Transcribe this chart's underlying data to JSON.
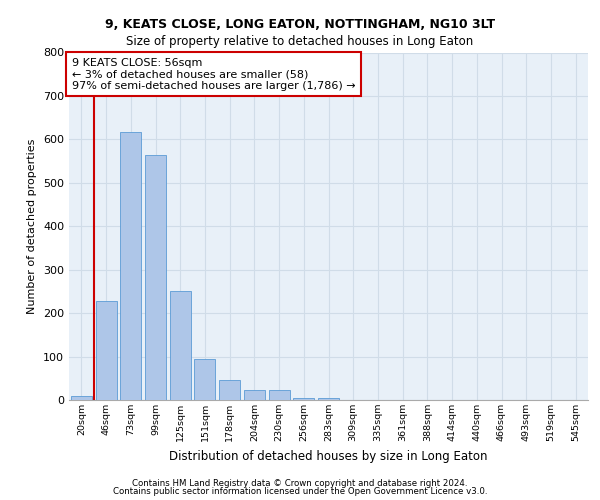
{
  "title1": "9, KEATS CLOSE, LONG EATON, NOTTINGHAM, NG10 3LT",
  "title2": "Size of property relative to detached houses in Long Eaton",
  "xlabel": "Distribution of detached houses by size in Long Eaton",
  "ylabel": "Number of detached properties",
  "categories": [
    "20sqm",
    "46sqm",
    "73sqm",
    "99sqm",
    "125sqm",
    "151sqm",
    "178sqm",
    "204sqm",
    "230sqm",
    "256sqm",
    "283sqm",
    "309sqm",
    "335sqm",
    "361sqm",
    "388sqm",
    "414sqm",
    "440sqm",
    "466sqm",
    "493sqm",
    "519sqm",
    "545sqm"
  ],
  "bar_heights": [
    10,
    228,
    617,
    565,
    250,
    95,
    45,
    22,
    22,
    5,
    5,
    0,
    0,
    0,
    0,
    0,
    0,
    0,
    0,
    0,
    0
  ],
  "bar_color": "#aec6e8",
  "bar_edge_color": "#5b9bd5",
  "grid_color": "#d0dce8",
  "background_color": "#e8f0f8",
  "vline_color": "#cc0000",
  "vline_x_index": 1,
  "annotation_text": "9 KEATS CLOSE: 56sqm\n← 3% of detached houses are smaller (58)\n97% of semi-detached houses are larger (1,786) →",
  "annotation_box_color": "#ffffff",
  "annotation_box_edge": "#cc0000",
  "ylim": [
    0,
    800
  ],
  "yticks": [
    0,
    100,
    200,
    300,
    400,
    500,
    600,
    700,
    800
  ],
  "footer1": "Contains HM Land Registry data © Crown copyright and database right 2024.",
  "footer2": "Contains public sector information licensed under the Open Government Licence v3.0."
}
